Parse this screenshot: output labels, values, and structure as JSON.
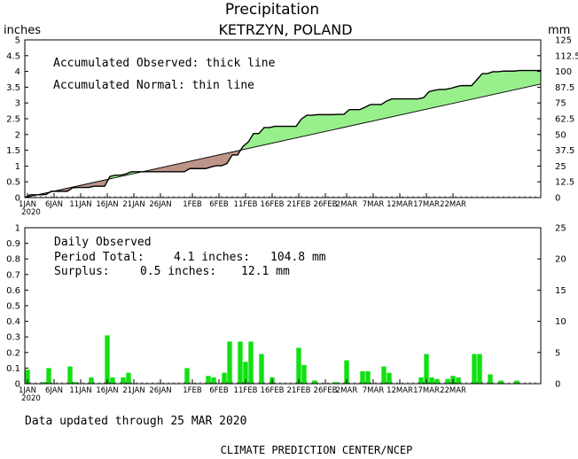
{
  "header": {
    "title": "Precipitation",
    "subtitle": "KETRZYN, POLAND",
    "left_unit": "inches",
    "right_unit": "mm"
  },
  "top_panel": {
    "legend_observed": "Accumulated Observed: thick line",
    "legend_normal": "Accumulated Normal: thin line",
    "surplus_color": "#98f08c",
    "deficit_color": "#bc9488"
  },
  "bottom_panel": {
    "title": "Daily Observed",
    "period_total_label": "Period Total:",
    "period_total_in": "4.1 inches:",
    "period_total_mm": "104.8 mm",
    "surplus_label": "Surplus:",
    "surplus_in": "0.5 inches:",
    "surplus_mm": "12.1 mm",
    "bar_color": "#10e010"
  },
  "footer": {
    "updated": "Data updated through 25 MAR 2020",
    "credit": "CLIMATE PREDICTION CENTER/NCEP"
  },
  "chart_data": [
    {
      "type": "area",
      "x_day_labels": [
        "1JAN",
        "6JAN",
        "11JAN",
        "16JAN",
        "21JAN",
        "26JAN",
        "1FEB",
        "6FEB",
        "11FEB",
        "16FEB",
        "21FEB",
        "26FEB",
        "2MAR",
        "7MAR",
        "12MAR",
        "17MAR",
        "22MAR"
      ],
      "x_year_label": "2020",
      "ylim": [
        0,
        5
      ],
      "y_ticks": [
        "0",
        "0.5",
        "1",
        "1.5",
        "2",
        "2.5",
        "3",
        "3.5",
        "4",
        "4.5",
        "5"
      ],
      "y2lim": [
        0,
        125
      ],
      "y2_ticks": [
        "0",
        "12.5",
        "25",
        "37.5",
        "50",
        "62.5",
        "75",
        "87.5",
        "100",
        "112.5",
        "125"
      ],
      "series": [
        {
          "key": "observed",
          "daily_in": [
            0.09,
            0,
            0,
            0.01,
            0.1,
            0,
            0,
            0,
            0.11,
            0.01,
            0,
            0,
            0.04,
            0,
            0,
            0.31,
            0.04,
            0,
            0.04,
            0.07,
            0,
            0,
            0,
            0,
            0,
            0,
            0,
            0,
            0,
            0,
            0.1,
            0,
            0,
            0,
            0.05,
            0.04,
            0,
            0.07,
            0.27,
            0,
            0.27,
            0.14,
            0.27,
            0,
            0.19,
            0,
            0.04,
            0,
            0,
            0,
            0,
            0.23,
            0.12,
            0,
            0.02,
            0,
            0,
            0,
            0.01,
            0,
            0.15,
            0,
            0,
            0.08,
            0.08,
            0,
            0,
            0.11,
            0.07,
            0,
            0,
            0,
            0,
            0,
            0.04,
            0.19,
            0.04,
            0.03,
            0,
            0.03,
            0.05,
            0.04,
            0,
            0,
            0.19,
            0.19,
            0,
            0.06,
            0,
            0.02,
            0,
            0,
            0.02,
            0,
            0,
            0,
            0
          ]
        },
        {
          "key": "normal",
          "start_in": 0,
          "end_in": 3.6
        }
      ]
    },
    {
      "type": "bar",
      "ylim": [
        0,
        1
      ],
      "y_ticks": [
        "0",
        "0.1",
        "0.2",
        "0.3",
        "0.4",
        "0.5",
        "0.6",
        "0.7",
        "0.8",
        "0.9",
        "1"
      ],
      "y2lim": [
        0,
        25
      ],
      "y2_ticks": [
        "0",
        "5",
        "10",
        "15",
        "20",
        "25"
      ],
      "x_day_labels": [
        "1JAN",
        "6JAN",
        "11JAN",
        "16JAN",
        "21JAN",
        "26JAN",
        "1FEB",
        "6FEB",
        "11FEB",
        "16FEB",
        "21FEB",
        "26FEB",
        "2MAR",
        "7MAR",
        "12MAR",
        "17MAR",
        "22MAR"
      ],
      "x_year_label": "2020"
    }
  ]
}
